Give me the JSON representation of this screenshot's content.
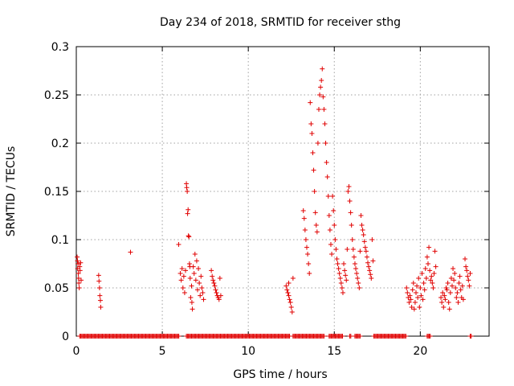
{
  "chart_data": {
    "type": "scatter",
    "title": "Day 234 of 2018, SRMTID for receiver sthg",
    "xlabel": "GPS time / hours",
    "ylabel": "SRMTID / TECUs",
    "xlim": [
      0,
      24
    ],
    "ylim": [
      0,
      0.3
    ],
    "x_ticks": [
      "0",
      "5",
      "10",
      "15",
      "20"
    ],
    "y_ticks": [
      "0",
      "0.05",
      "0.1",
      "0.15",
      "0.2",
      "0.25",
      "0.3"
    ],
    "grid": true,
    "legend": "none",
    "marker": "plus",
    "color": "#e00000",
    "series": [
      {
        "points": [
          [
            0.05,
            0.082
          ],
          [
            0.07,
            0.078
          ],
          [
            0.08,
            0.07
          ],
          [
            0.1,
            0.075
          ],
          [
            0.12,
            0.065
          ],
          [
            0.13,
            0.06
          ],
          [
            0.15,
            0.055
          ],
          [
            0.17,
            0.05
          ],
          [
            0.2,
            0.072
          ],
          [
            0.22,
            0.068
          ],
          [
            0.25,
            0.076
          ],
          [
            0.28,
            0.058
          ],
          [
            1.3,
            0.063
          ],
          [
            1.32,
            0.057
          ],
          [
            1.35,
            0.05
          ],
          [
            1.37,
            0.042
          ],
          [
            1.4,
            0.037
          ],
          [
            1.42,
            0.03
          ],
          [
            3.15,
            0.087
          ],
          [
            5.95,
            0.095
          ],
          [
            6.05,
            0.065
          ],
          [
            6.1,
            0.058
          ],
          [
            6.15,
            0.07
          ],
          [
            6.2,
            0.05
          ],
          [
            6.25,
            0.062
          ],
          [
            6.3,
            0.045
          ],
          [
            6.35,
            0.068
          ],
          [
            6.4,
            0.158
          ],
          [
            6.42,
            0.154
          ],
          [
            6.45,
            0.15
          ],
          [
            6.47,
            0.127
          ],
          [
            6.5,
            0.131
          ],
          [
            6.52,
            0.104
          ],
          [
            6.55,
            0.103
          ],
          [
            6.58,
            0.075
          ],
          [
            6.6,
            0.072
          ],
          [
            6.62,
            0.06
          ],
          [
            6.65,
            0.04
          ],
          [
            6.7,
            0.052
          ],
          [
            6.72,
            0.035
          ],
          [
            6.75,
            0.028
          ],
          [
            6.8,
            0.072
          ],
          [
            6.85,
            0.065
          ],
          [
            6.9,
            0.085
          ],
          [
            6.95,
            0.058
          ],
          [
            7.0,
            0.078
          ],
          [
            7.05,
            0.048
          ],
          [
            7.1,
            0.07
          ],
          [
            7.15,
            0.055
          ],
          [
            7.2,
            0.042
          ],
          [
            7.25,
            0.062
          ],
          [
            7.3,
            0.05
          ],
          [
            7.35,
            0.045
          ],
          [
            7.4,
            0.038
          ],
          [
            7.85,
            0.068
          ],
          [
            7.9,
            0.062
          ],
          [
            7.95,
            0.058
          ],
          [
            8.0,
            0.055
          ],
          [
            8.05,
            0.052
          ],
          [
            8.1,
            0.048
          ],
          [
            8.15,
            0.045
          ],
          [
            8.2,
            0.042
          ],
          [
            8.25,
            0.04
          ],
          [
            8.3,
            0.038
          ],
          [
            8.35,
            0.06
          ],
          [
            8.4,
            0.042
          ],
          [
            12.2,
            0.052
          ],
          [
            12.25,
            0.048
          ],
          [
            12.3,
            0.045
          ],
          [
            12.35,
            0.042
          ],
          [
            12.4,
            0.038
          ],
          [
            12.45,
            0.035
          ],
          [
            12.5,
            0.03
          ],
          [
            12.55,
            0.025
          ],
          [
            12.6,
            0.06
          ],
          [
            12.35,
            0.055
          ],
          [
            13.2,
            0.13
          ],
          [
            13.25,
            0.122
          ],
          [
            13.3,
            0.11
          ],
          [
            13.35,
            0.1
          ],
          [
            13.4,
            0.092
          ],
          [
            13.45,
            0.085
          ],
          [
            13.5,
            0.075
          ],
          [
            13.55,
            0.065
          ],
          [
            13.6,
            0.242
          ],
          [
            13.65,
            0.22
          ],
          [
            13.7,
            0.21
          ],
          [
            13.75,
            0.19
          ],
          [
            13.8,
            0.172
          ],
          [
            13.85,
            0.15
          ],
          [
            13.9,
            0.128
          ],
          [
            13.95,
            0.115
          ],
          [
            14.0,
            0.108
          ],
          [
            14.05,
            0.2
          ],
          [
            14.1,
            0.235
          ],
          [
            14.15,
            0.25
          ],
          [
            14.2,
            0.258
          ],
          [
            14.25,
            0.265
          ],
          [
            14.3,
            0.277
          ],
          [
            14.35,
            0.248
          ],
          [
            14.4,
            0.235
          ],
          [
            14.45,
            0.22
          ],
          [
            14.5,
            0.2
          ],
          [
            14.55,
            0.18
          ],
          [
            14.6,
            0.165
          ],
          [
            14.65,
            0.145
          ],
          [
            14.7,
            0.125
          ],
          [
            14.75,
            0.11
          ],
          [
            14.8,
            0.095
          ],
          [
            14.85,
            0.085
          ],
          [
            14.9,
            0.145
          ],
          [
            14.95,
            0.13
          ],
          [
            15.0,
            0.115
          ],
          [
            15.05,
            0.1
          ],
          [
            15.1,
            0.09
          ],
          [
            15.15,
            0.08
          ],
          [
            15.2,
            0.075
          ],
          [
            15.25,
            0.07
          ],
          [
            15.3,
            0.065
          ],
          [
            15.35,
            0.06
          ],
          [
            15.4,
            0.055
          ],
          [
            15.45,
            0.05
          ],
          [
            15.5,
            0.045
          ],
          [
            15.55,
            0.075
          ],
          [
            15.6,
            0.068
          ],
          [
            15.65,
            0.063
          ],
          [
            15.7,
            0.058
          ],
          [
            15.75,
            0.09
          ],
          [
            15.8,
            0.15
          ],
          [
            15.85,
            0.155
          ],
          [
            15.9,
            0.14
          ],
          [
            15.95,
            0.128
          ],
          [
            16.0,
            0.115
          ],
          [
            16.05,
            0.1
          ],
          [
            16.1,
            0.09
          ],
          [
            16.15,
            0.082
          ],
          [
            16.2,
            0.075
          ],
          [
            16.25,
            0.07
          ],
          [
            16.3,
            0.065
          ],
          [
            16.35,
            0.06
          ],
          [
            16.4,
            0.055
          ],
          [
            16.45,
            0.05
          ],
          [
            16.5,
            0.088
          ],
          [
            16.55,
            0.125
          ],
          [
            16.6,
            0.115
          ],
          [
            16.65,
            0.11
          ],
          [
            16.7,
            0.105
          ],
          [
            16.75,
            0.098
          ],
          [
            16.8,
            0.092
          ],
          [
            16.85,
            0.088
          ],
          [
            16.9,
            0.082
          ],
          [
            16.95,
            0.076
          ],
          [
            17.0,
            0.072
          ],
          [
            17.05,
            0.068
          ],
          [
            17.1,
            0.064
          ],
          [
            17.15,
            0.06
          ],
          [
            17.2,
            0.1
          ],
          [
            17.25,
            0.078
          ],
          [
            19.2,
            0.05
          ],
          [
            19.25,
            0.045
          ],
          [
            19.3,
            0.04
          ],
          [
            19.35,
            0.035
          ],
          [
            19.4,
            0.042
          ],
          [
            19.45,
            0.038
          ],
          [
            19.5,
            0.03
          ],
          [
            19.55,
            0.048
          ],
          [
            19.6,
            0.055
          ],
          [
            19.65,
            0.028
          ],
          [
            19.7,
            0.035
          ],
          [
            19.75,
            0.045
          ],
          [
            19.8,
            0.052
          ],
          [
            19.85,
            0.04
          ],
          [
            19.9,
            0.06
          ],
          [
            19.95,
            0.03
          ],
          [
            20.0,
            0.05
          ],
          [
            20.05,
            0.042
          ],
          [
            20.1,
            0.065
          ],
          [
            20.15,
            0.038
          ],
          [
            20.2,
            0.055
          ],
          [
            20.25,
            0.048
          ],
          [
            20.3,
            0.07
          ],
          [
            20.35,
            0.06
          ],
          [
            20.4,
            0.082
          ],
          [
            20.45,
            0.075
          ],
          [
            20.5,
            0.092
          ],
          [
            20.55,
            0.068
          ],
          [
            20.6,
            0.058
          ],
          [
            20.65,
            0.062
          ],
          [
            20.7,
            0.055
          ],
          [
            20.75,
            0.05
          ],
          [
            20.8,
            0.065
          ],
          [
            20.85,
            0.088
          ],
          [
            20.9,
            0.072
          ],
          [
            21.2,
            0.04
          ],
          [
            21.25,
            0.035
          ],
          [
            21.3,
            0.045
          ],
          [
            21.35,
            0.03
          ],
          [
            21.4,
            0.042
          ],
          [
            21.45,
            0.038
          ],
          [
            21.5,
            0.05
          ],
          [
            21.55,
            0.048
          ],
          [
            21.6,
            0.055
          ],
          [
            21.65,
            0.035
          ],
          [
            21.7,
            0.028
          ],
          [
            21.75,
            0.045
          ],
          [
            21.8,
            0.06
          ],
          [
            21.85,
            0.052
          ],
          [
            21.9,
            0.07
          ],
          [
            21.95,
            0.058
          ],
          [
            22.0,
            0.065
          ],
          [
            22.05,
            0.05
          ],
          [
            22.1,
            0.04
          ],
          [
            22.15,
            0.045
          ],
          [
            22.2,
            0.035
          ],
          [
            22.25,
            0.055
          ],
          [
            22.3,
            0.062
          ],
          [
            22.35,
            0.048
          ],
          [
            22.4,
            0.04
          ],
          [
            22.45,
            0.052
          ],
          [
            22.5,
            0.038
          ],
          [
            22.6,
            0.08
          ],
          [
            22.65,
            0.072
          ],
          [
            22.7,
            0.068
          ],
          [
            22.75,
            0.062
          ],
          [
            22.8,
            0.058
          ],
          [
            22.85,
            0.052
          ],
          [
            22.9,
            0.065
          ]
        ],
        "zero_runs": [
          [
            0.2,
            6.0
          ],
          [
            6.4,
            12.4
          ],
          [
            12.6,
            14.4
          ],
          [
            14.7,
            15.5
          ],
          [
            15.9,
            16.0
          ],
          [
            16.2,
            16.5
          ],
          [
            17.3,
            19.2
          ],
          [
            20.4,
            20.6
          ],
          [
            22.9,
            23.0
          ]
        ]
      }
    ]
  }
}
